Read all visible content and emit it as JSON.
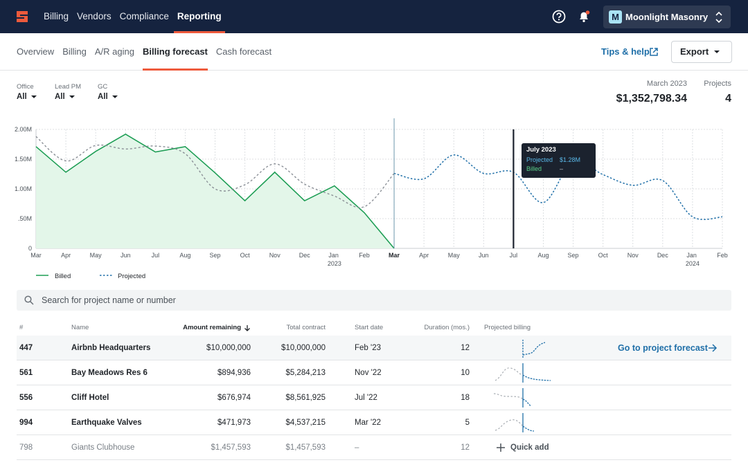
{
  "nav": {
    "items": [
      "Billing",
      "Vendors",
      "Compliance",
      "Reporting"
    ],
    "active_index": 3,
    "company": {
      "initial": "M",
      "name": "Moonlight Masonry"
    }
  },
  "tabs": {
    "items": [
      "Overview",
      "Billing",
      "A/R aging",
      "Billing forecast",
      "Cash forecast"
    ],
    "active_index": 3,
    "tips": "Tips & help",
    "export": "Export"
  },
  "filters": [
    {
      "label": "Office",
      "value": "All"
    },
    {
      "label": "Lead PM",
      "value": "All"
    },
    {
      "label": "GC",
      "value": "All"
    }
  ],
  "summary": [
    {
      "label": "March 2023",
      "value": "$1,352,798.34"
    },
    {
      "label": "Projects",
      "value": "4"
    }
  ],
  "chart_data": {
    "type": "line",
    "categories": [
      "Mar",
      "Apr",
      "May",
      "Jun",
      "Jul",
      "Aug",
      "Sep",
      "Oct",
      "Nov",
      "Dec",
      "Jan 2023",
      "Feb",
      "Mar",
      "Apr",
      "May",
      "Jun",
      "Jul",
      "Aug",
      "Sep",
      "Oct",
      "Nov",
      "Dec",
      "Jan 2024",
      "Feb"
    ],
    "series": [
      {
        "name": "Billed",
        "color": "#1e9e55",
        "area_color": "#e3f6e9",
        "values": [
          1710000,
          1280000,
          1630000,
          1920000,
          1620000,
          1710000,
          1270000,
          800000,
          1280000,
          800000,
          1050000,
          600000,
          0,
          null,
          null,
          null,
          null,
          null,
          null,
          null,
          null,
          null,
          null,
          null
        ]
      },
      {
        "name": "Projected",
        "color": "#1f6fa8",
        "past_color": "#8a8f96",
        "values": [
          1880000,
          1470000,
          1730000,
          1670000,
          1720000,
          1590000,
          1000000,
          1070000,
          1420000,
          1080000,
          880000,
          700000,
          1260000,
          1170000,
          1570000,
          1260000,
          1280000,
          770000,
          1470000,
          1240000,
          1060000,
          1140000,
          530000,
          530000
        ]
      }
    ],
    "ylim": [
      0,
      2000000
    ],
    "yticks": [
      {
        "value": 0,
        "label": "0"
      },
      {
        "value": 500000,
        "label": ".50M"
      },
      {
        "value": 1000000,
        "label": "1.00M"
      },
      {
        "value": 1500000,
        "label": "1.50M"
      },
      {
        "value": 2000000,
        "label": "2.00M"
      }
    ],
    "grid": true,
    "current_index": 12,
    "hover_index": 16,
    "tooltip": {
      "title": "July 2023",
      "rows": [
        {
          "label": "Projected",
          "value": "$1.28M"
        },
        {
          "label": "Billed",
          "value": "–"
        }
      ]
    }
  },
  "search": {
    "placeholder": "Search for project name or number"
  },
  "table": {
    "columns": [
      "#",
      "Name",
      "Amount remaining",
      "Total contract",
      "Start date",
      "Duration (mos.)",
      "Projected billing"
    ],
    "sort_column": 2,
    "rows": [
      [
        "447",
        "Airbnb Headquarters",
        "$10,000,000",
        "$10,000,000",
        "Feb '23",
        "12"
      ],
      [
        "561",
        "Bay Meadows Res 6",
        "$894,936",
        "$5,284,213",
        "Nov '22",
        "10"
      ],
      [
        "556",
        "Cliff Hotel",
        "$676,974",
        "$8,561,925",
        "Jul '22",
        "18"
      ],
      [
        "994",
        "Earthquake Valves",
        "$471,973",
        "$4,537,215",
        "Mar '22",
        "5"
      ],
      [
        "798",
        "Giants Clubhouse",
        "$1,457,593",
        "$1,457,593",
        "–",
        "12"
      ]
    ],
    "row_action": "Go to project forecast",
    "quick_add": "Quick add"
  }
}
